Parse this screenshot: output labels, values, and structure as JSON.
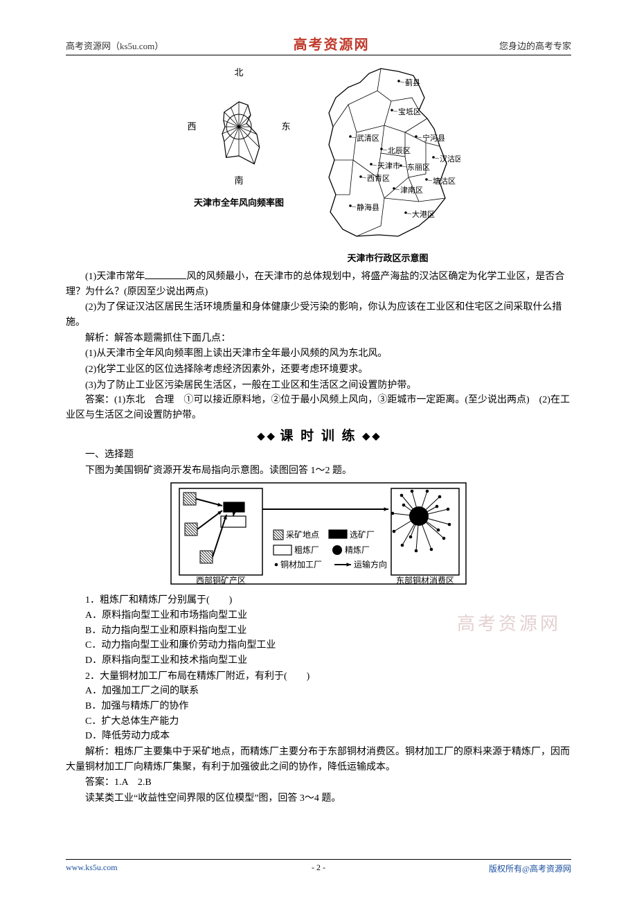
{
  "header": {
    "left": "高考资源网（ks5u.com）",
    "center": "高考资源网",
    "right": "您身边的高考专家"
  },
  "fig1": {
    "caption": "天津市全年风向频率图",
    "labels": {
      "n": "北",
      "s": "南",
      "e": "东",
      "w": "西"
    },
    "rose_radii": [
      36,
      34,
      24,
      12,
      16,
      28,
      42,
      58,
      42,
      48,
      30,
      26,
      20,
      24,
      30,
      30
    ],
    "circle_r": 18,
    "stroke": "#000000",
    "bg": "#ffffff",
    "label_fontsize": 13
  },
  "fig2": {
    "caption": "天津市行政区示意图",
    "districts": [
      "蓟县",
      "宝坻区",
      "武清区",
      "宁河县",
      "北辰区",
      "汉沽区",
      "天津市",
      "东丽区",
      "西青区",
      "塘沽区",
      "津南区",
      "静海县",
      "大港区"
    ],
    "stroke": "#000000",
    "bg": "#ffffff",
    "label_fontsize": 11
  },
  "q1": {
    "lead": "(1)天津市常年",
    "tail": "风的风频最小，在天津市的总体规划中，将盛产海盐的汉沽区确定为化学工业区，是否合理？为什么？(原因至少说出两点)"
  },
  "q2": "(2)为了保证汉沽区居民生活环境质量和身体健康少受污染的影响，你认为应该在工业区和住宅区之间采取什么措施。",
  "anal_label": "解析：解答本题需抓住下面几点：",
  "anal1": "(1)从天津市全年风向频率图上读出天津市全年最小风频的风为东北风。",
  "anal2": "(2)化学工业区的区位选择除考虑经济因素外，还要考虑环境要求。",
  "anal3": "(3)为了防止工业区污染居民生活区，一般在工业区和生活区之间设置防护带。",
  "ans": "答案：(1)东北　合理　①可以接近原料地，②位于最小风频上风向，③距城市一定距离。(至少说出两点)　(2)在工业区与生活区之间设置防护带。",
  "banner": "课 时 训 练",
  "mc_head": "一、选择题",
  "mc_intro": "下图为美国铜矿资源开发布局指向示意图。读图回答 1～2 题。",
  "fig3": {
    "legend": {
      "mine": "采矿地点",
      "select": "选矿厂",
      "rough": "粗炼厂",
      "refine": "精炼厂",
      "process": "铜材加工厂",
      "arrow": "运输方向"
    },
    "left_label": "西部铜矿产区",
    "right_label": "东部铜材消费区",
    "stroke": "#000000",
    "bg": "#ffffff",
    "label_fontsize": 12
  },
  "q_1": "1．粗炼厂和精炼厂分别属于(　　)",
  "q_1_opts": {
    "A": "A．原料指向型工业和市场指向型工业",
    "B": "B．动力指向型工业和原料指向型工业",
    "C": "C．动力指向型工业和廉价劳动力指向型工业",
    "D": "D．原料指向型工业和技术指向型工业"
  },
  "q_2": "2．大量铜材加工厂布局在精炼厂附近，有利于(　　)",
  "q_2_opts": {
    "A": "A．加强加工厂之间的联系",
    "B": "B．加强与精炼厂的协作",
    "C": "C．扩大总体生产能力",
    "D": "D．降低劳动力成本"
  },
  "anal_b": "解析：粗炼厂主要集中于采矿地点，而精炼厂主要分布于东部铜材消费区。铜材加工厂的原料来源于精炼厂，因而大量铜材加工厂向精炼厂集聚，有利于加强彼此之间的协作，降低运输成本。",
  "ans_b": "答案：1.A　2.B",
  "next": "读某类工业“收益性空间界限的区位模型”图，回答 3～4 题。",
  "watermark": "高考资源网",
  "footer": {
    "left": "www.ks5u.com",
    "center": "- 2 -",
    "right": "版权所有@高考资源网"
  }
}
